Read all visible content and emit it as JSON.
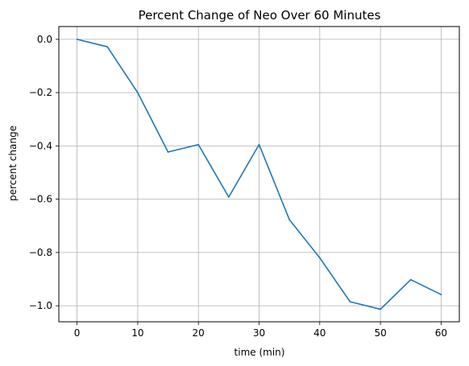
{
  "chart_data": {
    "type": "line",
    "title": "Percent Change of Neo Over 60 Minutes",
    "xlabel": "time (min)",
    "ylabel": "percent change",
    "xlim": [
      -3,
      63
    ],
    "ylim": [
      -1.06,
      0.048
    ],
    "xticks": [
      0,
      10,
      20,
      30,
      40,
      50,
      60
    ],
    "xtick_labels": [
      "0",
      "10",
      "20",
      "30",
      "40",
      "50",
      "60"
    ],
    "yticks": [
      0.0,
      -0.2,
      -0.4,
      -0.6,
      -0.8,
      -1.0
    ],
    "ytick_labels": [
      "0.0",
      "−0.2",
      "−0.4",
      "−0.6",
      "−0.8",
      "−1.0"
    ],
    "grid": true,
    "series": [
      {
        "color": "#1f77b4",
        "x": [
          0,
          5,
          10,
          15,
          20,
          25,
          30,
          35,
          40,
          45,
          50,
          55,
          60
        ],
        "y": [
          0.0,
          -0.028,
          -0.2,
          -0.423,
          -0.395,
          -0.592,
          -0.395,
          -0.677,
          -0.82,
          -0.985,
          -1.013,
          -0.902,
          -0.958
        ]
      }
    ]
  }
}
